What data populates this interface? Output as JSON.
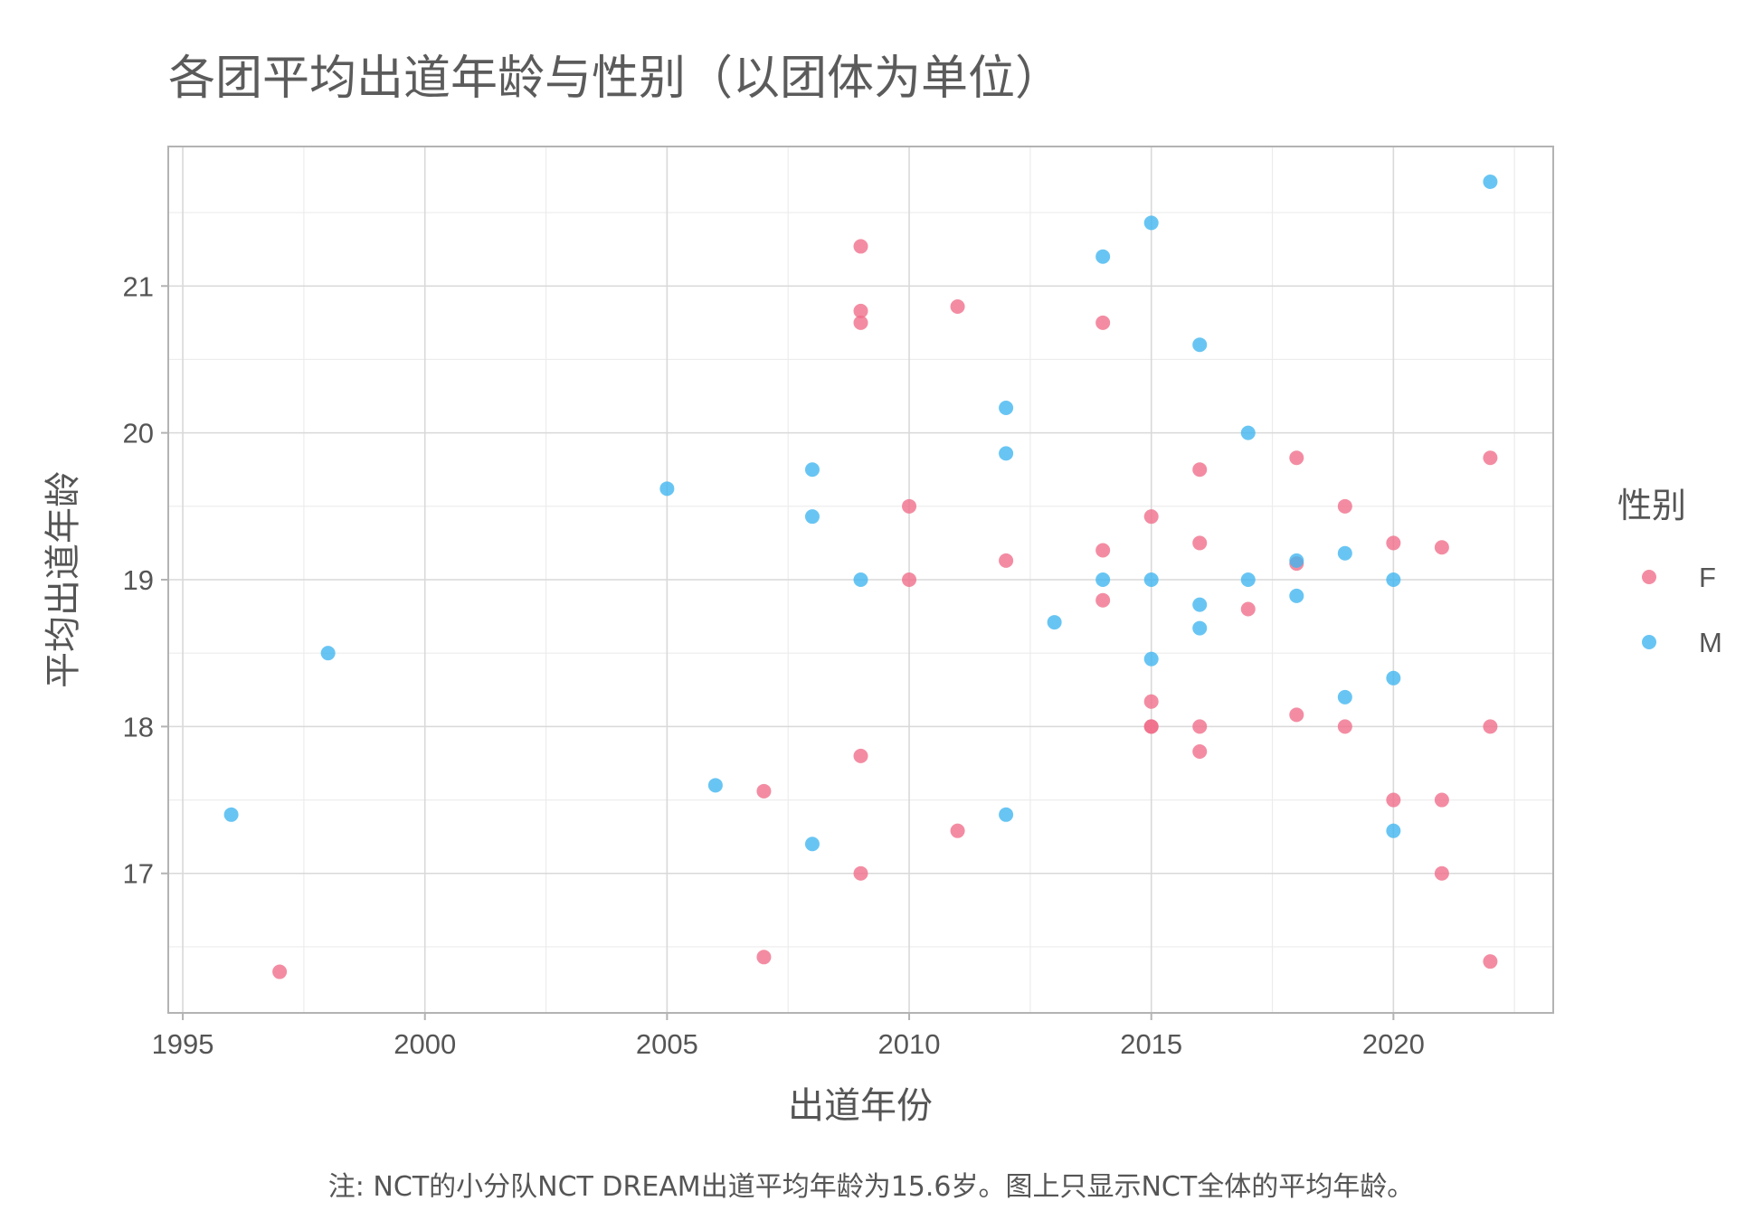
{
  "chart_data": {
    "type": "scatter",
    "title": "各团平均出道年龄与性别（以团体为单位）",
    "xlabel": "出道年份",
    "ylabel": "平均出道年龄",
    "caption": "注: NCT的小分队NCT DREAM出道平均年龄为15.6岁。图上只显示NCT全体的平均年龄。",
    "xlim": [
      1994.7,
      2023.3
    ],
    "ylim": [
      16.05,
      21.95
    ],
    "x_ticks": [
      1995,
      2000,
      2005,
      2010,
      2015,
      2020
    ],
    "y_ticks": [
      17,
      18,
      19,
      20,
      21
    ],
    "grid": true,
    "legend": {
      "title": "性别",
      "position": "right"
    },
    "series": [
      {
        "name": "F",
        "color": "#f06b88",
        "points": [
          [
            1997,
            16.33
          ],
          [
            2007,
            17.56
          ],
          [
            2007,
            16.43
          ],
          [
            2009,
            21.27
          ],
          [
            2009,
            20.83
          ],
          [
            2009,
            20.75
          ],
          [
            2009,
            17.8
          ],
          [
            2009,
            17.0
          ],
          [
            2010,
            19.5
          ],
          [
            2010,
            19.0
          ],
          [
            2011,
            20.86
          ],
          [
            2011,
            17.29
          ],
          [
            2012,
            19.13
          ],
          [
            2014,
            20.75
          ],
          [
            2014,
            19.2
          ],
          [
            2014,
            18.86
          ],
          [
            2015,
            19.43
          ],
          [
            2015,
            18.17
          ],
          [
            2015,
            18.0
          ],
          [
            2015,
            18.0
          ],
          [
            2016,
            19.75
          ],
          [
            2016,
            19.25
          ],
          [
            2016,
            18.0
          ],
          [
            2016,
            17.83
          ],
          [
            2017,
            18.8
          ],
          [
            2018,
            19.83
          ],
          [
            2018,
            19.11
          ],
          [
            2018,
            18.08
          ],
          [
            2019,
            19.5
          ],
          [
            2019,
            18.0
          ],
          [
            2020,
            19.25
          ],
          [
            2020,
            17.5
          ],
          [
            2021,
            19.22
          ],
          [
            2021,
            17.5
          ],
          [
            2021,
            17.0
          ],
          [
            2022,
            19.83
          ],
          [
            2022,
            18.0
          ],
          [
            2022,
            16.4
          ]
        ]
      },
      {
        "name": "M",
        "color": "#3db5f0",
        "points": [
          [
            1996,
            17.4
          ],
          [
            1998,
            18.5
          ],
          [
            2005,
            19.62
          ],
          [
            2006,
            17.6
          ],
          [
            2008,
            19.75
          ],
          [
            2008,
            19.43
          ],
          [
            2008,
            17.2
          ],
          [
            2009,
            19.0
          ],
          [
            2012,
            20.17
          ],
          [
            2012,
            19.86
          ],
          [
            2012,
            17.4
          ],
          [
            2013,
            18.71
          ],
          [
            2014,
            21.2
          ],
          [
            2014,
            19.0
          ],
          [
            2015,
            21.43
          ],
          [
            2015,
            19.0
          ],
          [
            2015,
            18.46
          ],
          [
            2016,
            20.6
          ],
          [
            2016,
            18.83
          ],
          [
            2016,
            18.67
          ],
          [
            2017,
            20.0
          ],
          [
            2017,
            19.0
          ],
          [
            2018,
            19.13
          ],
          [
            2018,
            18.89
          ],
          [
            2019,
            19.18
          ],
          [
            2019,
            18.2
          ],
          [
            2020,
            19.0
          ],
          [
            2020,
            18.33
          ],
          [
            2020,
            17.29
          ],
          [
            2022,
            21.71
          ]
        ]
      }
    ]
  }
}
